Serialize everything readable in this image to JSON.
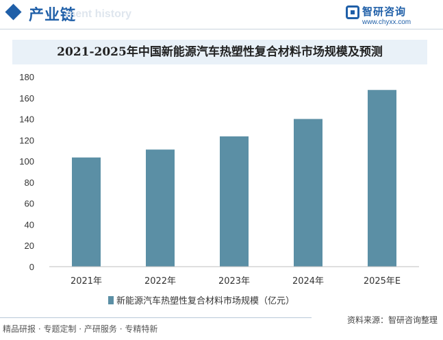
{
  "header": {
    "section_title": "产业链",
    "section_subtitle": "ment history",
    "logo_name": "智研咨询",
    "logo_url": "www.chyxx.com"
  },
  "chart_data": {
    "type": "bar",
    "title": "2021-2025年中国新能源汽车热塑性复合材料市场规模及预测",
    "categories": [
      "2021年",
      "2022年",
      "2023年",
      "2024年",
      "2025年E"
    ],
    "series": [
      {
        "name": "新能源汽车热塑性复合材料市场规模（亿元）",
        "values": [
          103.5,
          111,
          123.5,
          140,
          167.5
        ]
      }
    ],
    "ylim": [
      0,
      180
    ],
    "yticks": [
      0,
      20,
      40,
      60,
      80,
      100,
      120,
      140,
      160,
      180
    ],
    "grid": false,
    "legend_position": "bottom",
    "bar_color": "#5b8fa5"
  },
  "footer": {
    "left_text": "精品研报 · 专题定制 · 产研服务 · 专精特新",
    "source_text": "资料来源：智研咨询整理"
  },
  "colors": {
    "accent": "#1f5fa8",
    "bar": "#5b8fa5"
  }
}
